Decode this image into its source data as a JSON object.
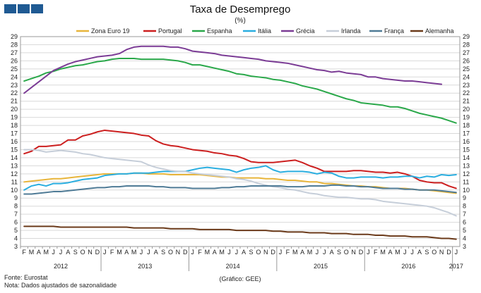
{
  "header": {
    "title": "Taxa de Desemprego",
    "subtitle": "(%)"
  },
  "footer": {
    "source": "Fonte: Eurostat",
    "note": "Nota: Dados ajustados de sazonalidade",
    "credit": "(Gráfico: GEE)"
  },
  "chart_data": {
    "type": "line",
    "title": "Taxa de Desemprego",
    "subtitle": "(%)",
    "xlabel": "",
    "ylabel": "",
    "ylim": [
      3,
      29
    ],
    "yticks": [
      3,
      4,
      5,
      6,
      7,
      8,
      9,
      10,
      11,
      12,
      13,
      14,
      15,
      16,
      17,
      18,
      19,
      20,
      21,
      22,
      23,
      24,
      25,
      26,
      27,
      28,
      29
    ],
    "months": [
      "F",
      "M",
      "A",
      "M",
      "J",
      "J",
      "A",
      "S",
      "O",
      "N",
      "D",
      "J",
      "F",
      "M",
      "A",
      "M",
      "J",
      "J",
      "A",
      "S",
      "O",
      "N",
      "D",
      "J",
      "F",
      "M",
      "A",
      "M",
      "J",
      "J",
      "A",
      "S",
      "O",
      "N",
      "D",
      "J",
      "F",
      "M",
      "A",
      "M",
      "J",
      "J",
      "A",
      "S",
      "O",
      "N",
      "D",
      "J",
      "F",
      "M",
      "A",
      "M",
      "J",
      "J",
      "A",
      "S",
      "O",
      "N",
      "D",
      "J"
    ],
    "years": [
      {
        "label": "2012",
        "start": 0,
        "end": 10
      },
      {
        "label": "2013",
        "start": 11,
        "end": 22
      },
      {
        "label": "2014",
        "start": 23,
        "end": 34
      },
      {
        "label": "2015",
        "start": 35,
        "end": 46
      },
      {
        "label": "2016",
        "start": 47,
        "end": 58
      },
      {
        "label": "2017",
        "start": 59,
        "end": 59
      }
    ],
    "grid": true,
    "legend_position": "top",
    "series": [
      {
        "name": "Zona Euro 19",
        "color": "#e8b53a",
        "values": [
          11.0,
          11.1,
          11.2,
          11.3,
          11.4,
          11.4,
          11.5,
          11.6,
          11.7,
          11.8,
          11.9,
          12.0,
          12.0,
          12.0,
          12.0,
          12.1,
          12.1,
          12.0,
          12.0,
          12.0,
          11.9,
          11.9,
          11.9,
          11.9,
          11.9,
          11.8,
          11.7,
          11.6,
          11.6,
          11.5,
          11.5,
          11.5,
          11.5,
          11.4,
          11.4,
          11.3,
          11.2,
          11.2,
          11.1,
          11.0,
          11.0,
          10.8,
          10.8,
          10.7,
          10.6,
          10.5,
          10.5,
          10.4,
          10.4,
          10.3,
          10.2,
          10.2,
          10.2,
          10.1,
          10.0,
          10.0,
          9.9,
          9.8,
          9.7,
          9.6
        ]
      },
      {
        "name": "Portugal",
        "color": "#cc1f1f",
        "values": [
          14.5,
          14.8,
          15.4,
          15.4,
          15.5,
          15.6,
          16.2,
          16.2,
          16.7,
          16.9,
          17.2,
          17.4,
          17.3,
          17.2,
          17.1,
          17.0,
          16.8,
          16.7,
          16.1,
          15.7,
          15.5,
          15.4,
          15.2,
          15.0,
          14.9,
          14.8,
          14.6,
          14.5,
          14.3,
          14.2,
          13.9,
          13.5,
          13.4,
          13.4,
          13.4,
          13.5,
          13.6,
          13.7,
          13.4,
          13.0,
          12.7,
          12.3,
          12.3,
          12.3,
          12.3,
          12.4,
          12.4,
          12.3,
          12.2,
          12.2,
          12.1,
          12.2,
          12.0,
          11.7,
          11.2,
          11.0,
          10.9,
          10.9,
          10.5,
          10.2
        ]
      },
      {
        "name": "Espanha",
        "color": "#2aa84a",
        "values": [
          23.5,
          23.8,
          24.1,
          24.5,
          24.7,
          25.0,
          25.2,
          25.4,
          25.5,
          25.7,
          25.9,
          26.0,
          26.2,
          26.3,
          26.3,
          26.3,
          26.2,
          26.2,
          26.2,
          26.2,
          26.1,
          26.0,
          25.8,
          25.5,
          25.5,
          25.3,
          25.1,
          24.9,
          24.7,
          24.4,
          24.3,
          24.1,
          24.0,
          23.9,
          23.7,
          23.6,
          23.4,
          23.2,
          22.9,
          22.7,
          22.5,
          22.2,
          21.9,
          21.6,
          21.3,
          21.1,
          20.8,
          20.7,
          20.6,
          20.5,
          20.3,
          20.3,
          20.1,
          19.8,
          19.5,
          19.3,
          19.1,
          18.9,
          18.6,
          18.3
        ]
      },
      {
        "name": "Itália",
        "color": "#2aaee0",
        "values": [
          10.0,
          10.5,
          10.7,
          10.5,
          10.8,
          10.8,
          10.9,
          11.1,
          11.3,
          11.4,
          11.5,
          11.8,
          11.9,
          12.0,
          12.0,
          12.1,
          12.1,
          12.1,
          12.2,
          12.3,
          12.3,
          12.3,
          12.3,
          12.5,
          12.7,
          12.8,
          12.7,
          12.6,
          12.5,
          12.2,
          12.5,
          12.7,
          12.8,
          13.0,
          12.5,
          12.2,
          12.3,
          12.3,
          12.3,
          12.2,
          12.0,
          12.2,
          12.1,
          11.7,
          11.5,
          11.5,
          11.6,
          11.6,
          11.6,
          11.5,
          11.6,
          11.6,
          11.7,
          11.7,
          11.5,
          11.7,
          11.6,
          11.9,
          11.8,
          11.9
        ]
      },
      {
        "name": "Grécia",
        "color": "#7b3c95",
        "values": [
          22.0,
          22.7,
          23.4,
          24.1,
          24.8,
          25.2,
          25.6,
          25.9,
          26.1,
          26.3,
          26.5,
          26.6,
          26.7,
          26.9,
          27.4,
          27.7,
          27.8,
          27.8,
          27.8,
          27.8,
          27.7,
          27.7,
          27.5,
          27.2,
          27.1,
          27.0,
          26.9,
          26.7,
          26.6,
          26.5,
          26.4,
          26.3,
          26.2,
          26.0,
          25.9,
          25.8,
          25.7,
          25.5,
          25.3,
          25.1,
          24.9,
          24.8,
          24.6,
          24.7,
          24.5,
          24.4,
          24.3,
          24.0,
          24.0,
          23.8,
          23.7,
          23.6,
          23.5,
          23.5,
          23.4,
          23.3,
          23.2,
          23.1,
          null,
          null
        ]
      },
      {
        "name": "Irlanda",
        "color": "#c6ced9",
        "values": [
          15.0,
          15.0,
          14.9,
          14.7,
          14.8,
          14.9,
          14.8,
          14.7,
          14.5,
          14.4,
          14.2,
          14.0,
          13.9,
          13.8,
          13.7,
          13.6,
          13.5,
          13.1,
          12.8,
          12.6,
          12.4,
          12.3,
          12.3,
          12.1,
          12.0,
          11.9,
          11.8,
          11.7,
          11.6,
          11.4,
          11.3,
          11.1,
          10.8,
          10.6,
          10.4,
          10.3,
          10.1,
          10.0,
          9.8,
          9.6,
          9.5,
          9.3,
          9.2,
          9.1,
          9.1,
          9.0,
          8.9,
          8.9,
          8.8,
          8.6,
          8.5,
          8.4,
          8.3,
          8.2,
          8.1,
          8.0,
          7.8,
          7.5,
          7.2,
          6.8
        ]
      },
      {
        "name": "França",
        "color": "#4f7b96",
        "values": [
          9.5,
          9.5,
          9.6,
          9.7,
          9.8,
          9.8,
          9.9,
          10.0,
          10.1,
          10.2,
          10.3,
          10.3,
          10.4,
          10.4,
          10.5,
          10.5,
          10.5,
          10.5,
          10.4,
          10.4,
          10.3,
          10.3,
          10.3,
          10.2,
          10.2,
          10.2,
          10.2,
          10.3,
          10.3,
          10.4,
          10.4,
          10.5,
          10.5,
          10.5,
          10.5,
          10.5,
          10.4,
          10.4,
          10.4,
          10.5,
          10.5,
          10.5,
          10.6,
          10.6,
          10.5,
          10.5,
          10.4,
          10.4,
          10.3,
          10.2,
          10.2,
          10.2,
          10.1,
          10.1,
          10.0,
          10.0,
          10.0,
          9.9,
          9.8,
          9.7
        ]
      },
      {
        "name": "Alemanha",
        "color": "#6b3a1a",
        "values": [
          5.5,
          5.5,
          5.5,
          5.5,
          5.5,
          5.4,
          5.4,
          5.4,
          5.4,
          5.4,
          5.4,
          5.4,
          5.4,
          5.4,
          5.4,
          5.3,
          5.3,
          5.3,
          5.3,
          5.3,
          5.2,
          5.2,
          5.2,
          5.2,
          5.1,
          5.1,
          5.1,
          5.1,
          5.1,
          5.0,
          5.0,
          5.0,
          5.0,
          5.0,
          4.9,
          4.9,
          4.8,
          4.8,
          4.8,
          4.7,
          4.7,
          4.7,
          4.6,
          4.6,
          4.6,
          4.5,
          4.5,
          4.5,
          4.4,
          4.4,
          4.3,
          4.3,
          4.3,
          4.2,
          4.2,
          4.2,
          4.1,
          4.0,
          4.0,
          3.9
        ]
      }
    ]
  }
}
